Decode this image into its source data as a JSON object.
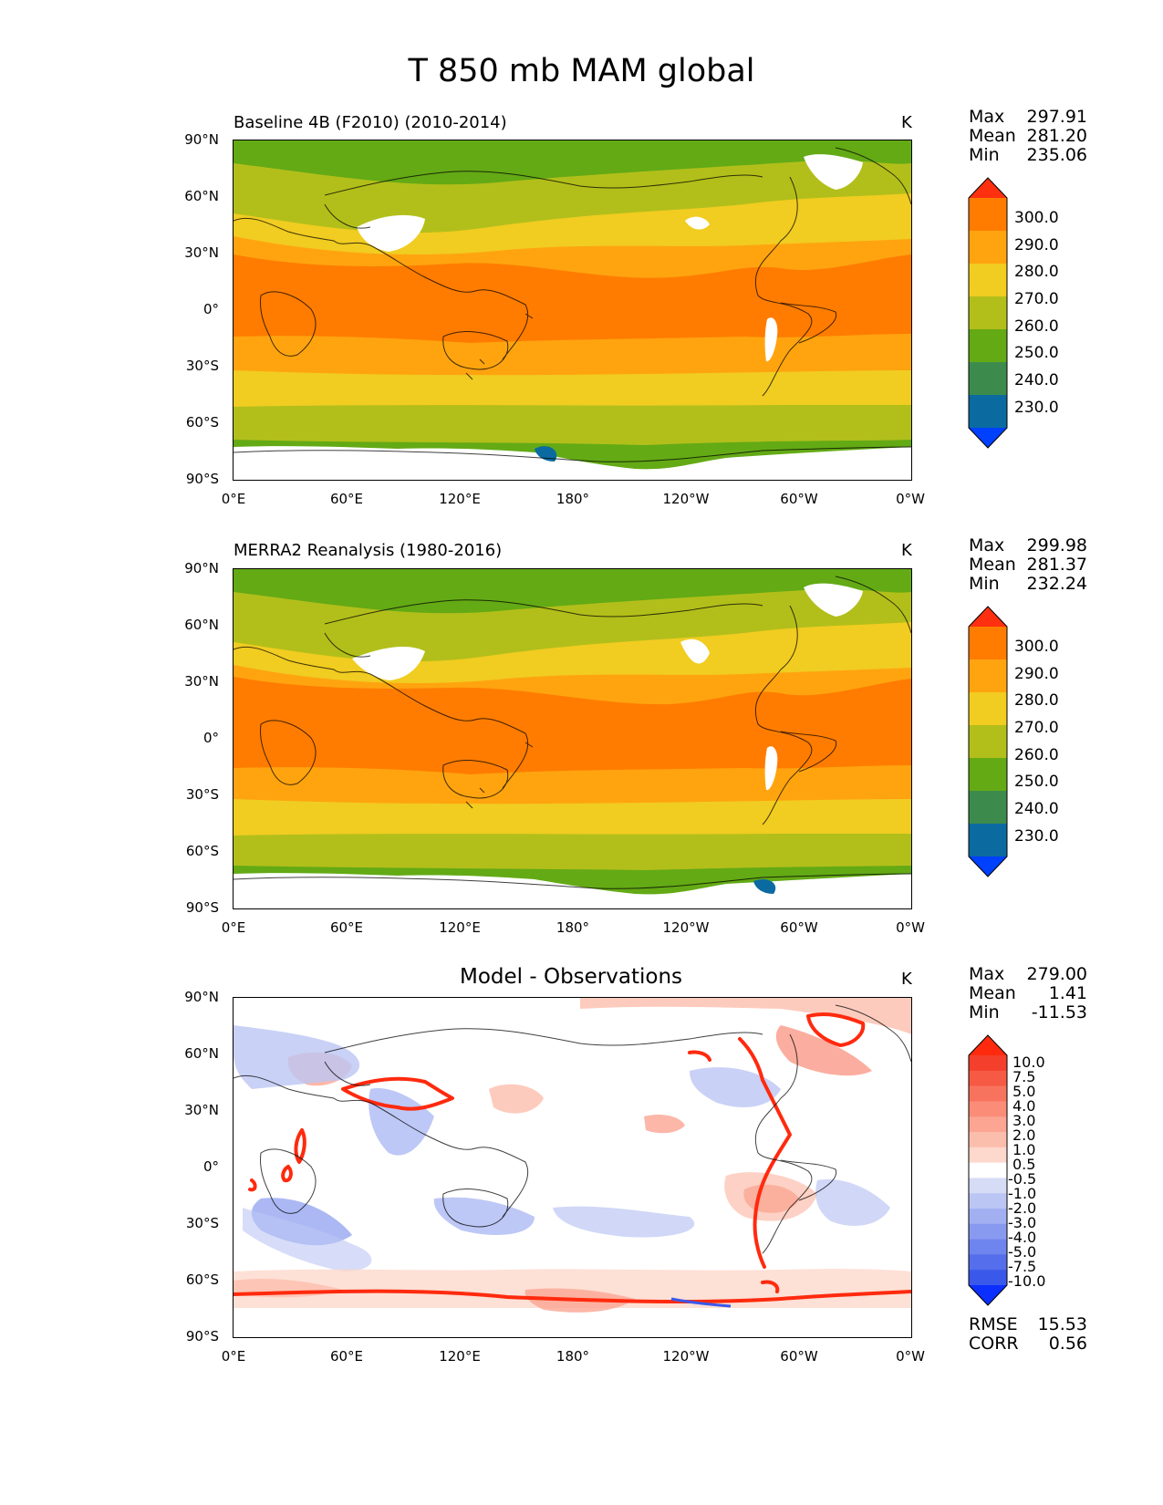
{
  "figure": {
    "title": "T 850 mb MAM global"
  },
  "axes": {
    "y_ticks": [
      "90°N",
      "60°N",
      "30°N",
      "0°",
      "30°S",
      "60°S",
      "90°S"
    ],
    "x_ticks": [
      "0°E",
      "60°E",
      "120°E",
      "180°",
      "120°W",
      "60°W",
      "0°W"
    ]
  },
  "panels": [
    {
      "title": "Baseline 4B (F2010) (2010-2014)",
      "units": "K",
      "stats": [
        {
          "label": "Max",
          "value": "297.91"
        },
        {
          "label": "Mean",
          "value": "281.20"
        },
        {
          "label": "Min",
          "value": "235.06"
        }
      ],
      "colorbar": {
        "labels": [
          "300.0",
          "290.0",
          "280.0",
          "270.0",
          "260.0",
          "250.0",
          "240.0",
          "230.0"
        ],
        "colors": [
          "#ff3010",
          "#ff7c00",
          "#ffa40f",
          "#f1cc21",
          "#b2bf1a",
          "#63aa15",
          "#3d8b4c",
          "#0b6ba0",
          "#0040ff"
        ]
      }
    },
    {
      "title": "MERRA2 Reanalysis (1980-2016)",
      "units": "K",
      "stats": [
        {
          "label": "Max",
          "value": "299.98"
        },
        {
          "label": "Mean",
          "value": "281.37"
        },
        {
          "label": "Min",
          "value": "232.24"
        }
      ],
      "colorbar": {
        "labels": [
          "300.0",
          "290.0",
          "280.0",
          "270.0",
          "260.0",
          "250.0",
          "240.0",
          "230.0"
        ],
        "colors": [
          "#ff3010",
          "#ff7c00",
          "#ffa40f",
          "#f1cc21",
          "#b2bf1a",
          "#63aa15",
          "#3d8b4c",
          "#0b6ba0",
          "#0040ff"
        ]
      }
    },
    {
      "title": "Model - Observations",
      "units": "K",
      "stats": [
        {
          "label": "Max",
          "value": "279.00"
        },
        {
          "label": "Mean",
          "value": "1.41"
        },
        {
          "label": "Min",
          "value": "-11.53"
        }
      ],
      "colorbar": {
        "labels": [
          "10.0",
          "7.5",
          "5.0",
          "4.0",
          "3.0",
          "2.0",
          "1.0",
          "0.5",
          "-0.5",
          "-1.0",
          "-2.0",
          "-3.0",
          "-4.0",
          "-5.0",
          "-7.5",
          "-10.0"
        ],
        "colors": [
          "#ff2a0e",
          "#f43f2c",
          "#f65a44",
          "#f8735e",
          "#fa8c78",
          "#fba592",
          "#fcbeac",
          "#fdd8cc",
          "#ffffff",
          "#d6dcf6",
          "#bcc6f4",
          "#a2b0f2",
          "#889af0",
          "#6e84ee",
          "#546eec",
          "#3a58ea",
          "#0a2fff"
        ]
      },
      "metrics": [
        {
          "label": "RMSE",
          "value": "15.53"
        },
        {
          "label": "CORR",
          "value": "0.56"
        }
      ]
    }
  ]
}
